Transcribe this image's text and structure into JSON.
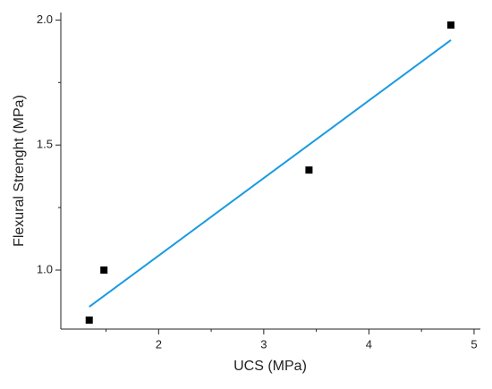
{
  "chart_data": {
    "type": "scatter",
    "x_label": "UCS (MPa)",
    "y_label": "Flexural Strenght (MPa)",
    "x": [
      1.34,
      1.48,
      3.43,
      4.78
    ],
    "values": [
      0.8,
      1.0,
      1.4,
      1.98
    ],
    "color": "#000000",
    "fit": {
      "x": [
        1.34,
        4.78
      ],
      "values": [
        0.853,
        1.92
      ],
      "color": "#1a9be0"
    },
    "xlim": [
      1.07,
      5.06
    ],
    "ylim": [
      0.764,
      2.03
    ],
    "xticks": [
      2,
      3,
      4,
      5
    ],
    "xminor": [
      1.5,
      2.5,
      3.5,
      4.5
    ],
    "yticks": [
      {
        "value": 1,
        "label": "1.0"
      },
      {
        "value": 1.5,
        "label": "1.5"
      },
      {
        "value": 2,
        "label": "2.0"
      }
    ],
    "yminor": [
      1.25,
      1.75
    ]
  }
}
